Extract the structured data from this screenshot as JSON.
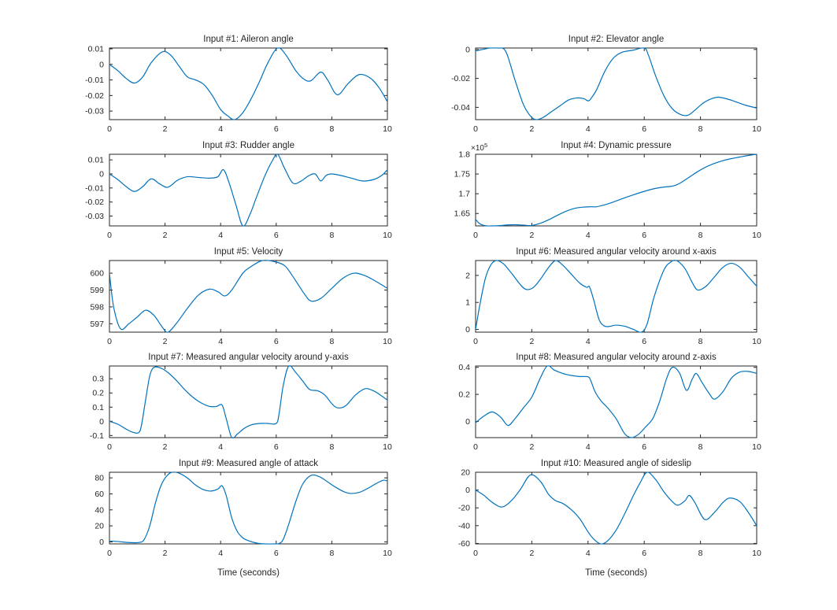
{
  "figure": {
    "background": "#ffffff",
    "line_color": "#0072BD",
    "axis_color": "#262626",
    "text_color": "#262626",
    "grid": false,
    "layout": {
      "rows": 5,
      "cols": 2
    }
  },
  "chart_data": [
    {
      "type": "line",
      "title": "Input #1: Aileron angle",
      "xlabel": "",
      "xlim": [
        0,
        10
      ],
      "ylim": [
        -0.0355,
        0.0105
      ],
      "xticks": [
        0,
        2,
        4,
        6,
        8,
        10
      ],
      "xtick_labels": [
        "0",
        "2",
        "4",
        "6",
        "8",
        "10"
      ],
      "yticks": [
        -0.03,
        -0.02,
        -0.01,
        0,
        0.01
      ],
      "ytick_labels": [
        "-0.03",
        "-0.02",
        "-0.01",
        "0",
        "0.01"
      ],
      "exponent_label": "",
      "x": [
        0,
        0.3,
        0.6,
        0.9,
        1.2,
        1.5,
        1.9,
        2.2,
        2.5,
        2.8,
        3.1,
        3.4,
        3.7,
        4.0,
        4.25,
        4.5,
        4.8,
        5.1,
        5.4,
        5.7,
        6.05,
        6.35,
        6.7,
        7.0,
        7.25,
        7.6,
        7.85,
        8.2,
        8.6,
        9.0,
        9.4,
        9.7,
        10
      ],
      "y": [
        0,
        -0.004,
        -0.009,
        -0.012,
        -0.008,
        0.001,
        0.008,
        0.006,
        -0.001,
        -0.008,
        -0.01,
        -0.013,
        -0.02,
        -0.029,
        -0.033,
        -0.0355,
        -0.031,
        -0.022,
        -0.011,
        0.001,
        0.0105,
        0.006,
        -0.004,
        -0.0095,
        -0.0105,
        -0.005,
        -0.01,
        -0.0195,
        -0.012,
        -0.0065,
        -0.009,
        -0.015,
        -0.024
      ]
    },
    {
      "type": "line",
      "title": "Input #2: Elevator angle",
      "xlabel": "",
      "xlim": [
        0,
        10
      ],
      "ylim": [
        -0.0485,
        0.001
      ],
      "xticks": [
        0,
        2,
        4,
        6,
        8,
        10
      ],
      "xtick_labels": [
        "0",
        "2",
        "4",
        "6",
        "8",
        "10"
      ],
      "yticks": [
        -0.04,
        -0.02,
        0
      ],
      "ytick_labels": [
        "-0.04",
        "-0.02",
        "0"
      ],
      "exponent_label": "",
      "x": [
        0,
        0.25,
        0.5,
        0.8,
        1.0,
        1.15,
        1.4,
        1.7,
        1.95,
        2.15,
        2.4,
        2.7,
        3.0,
        3.3,
        3.6,
        3.85,
        4.0,
        4.1,
        4.3,
        4.6,
        4.9,
        5.2,
        5.6,
        6.0,
        6.15,
        6.4,
        6.7,
        7.0,
        7.3,
        7.55,
        7.8,
        8.1,
        8.4,
        8.65,
        9.0,
        9.3,
        9.6,
        10
      ],
      "y": [
        -0.001,
        0,
        0.001,
        0.001,
        0.0005,
        -0.005,
        -0.021,
        -0.038,
        -0.046,
        -0.0485,
        -0.047,
        -0.043,
        -0.039,
        -0.035,
        -0.0335,
        -0.034,
        -0.0355,
        -0.034,
        -0.028,
        -0.015,
        -0.006,
        -0.002,
        -0.0005,
        0.001,
        -0.004,
        -0.018,
        -0.032,
        -0.041,
        -0.045,
        -0.0455,
        -0.042,
        -0.037,
        -0.034,
        -0.033,
        -0.0345,
        -0.0365,
        -0.0385,
        -0.0405
      ]
    },
    {
      "type": "line",
      "title": "Input #3: Rudder angle",
      "xlabel": "",
      "xlim": [
        0,
        10
      ],
      "ylim": [
        -0.037,
        0.014
      ],
      "xticks": [
        0,
        2,
        4,
        6,
        8,
        10
      ],
      "xtick_labels": [
        "0",
        "2",
        "4",
        "6",
        "8",
        "10"
      ],
      "yticks": [
        -0.03,
        -0.02,
        -0.01,
        0,
        0.01
      ],
      "ytick_labels": [
        "-0.03",
        "-0.02",
        "-0.01",
        "0",
        "0.01"
      ],
      "exponent_label": "",
      "x": [
        0,
        0.3,
        0.6,
        0.9,
        1.2,
        1.5,
        1.8,
        2.1,
        2.45,
        2.8,
        3.2,
        3.6,
        3.9,
        4.1,
        4.3,
        4.55,
        4.8,
        5.05,
        5.3,
        5.6,
        5.85,
        6.05,
        6.3,
        6.6,
        6.9,
        7.15,
        7.4,
        7.6,
        7.8,
        8.0,
        8.3,
        8.7,
        9.1,
        9.5,
        9.8,
        10
      ],
      "y": [
        0,
        -0.004,
        -0.009,
        -0.0125,
        -0.009,
        -0.0035,
        -0.007,
        -0.0095,
        -0.0045,
        -0.002,
        -0.0025,
        -0.003,
        -0.002,
        0.003,
        -0.006,
        -0.022,
        -0.037,
        -0.029,
        -0.016,
        -0.001,
        0.009,
        0.014,
        0.004,
        -0.0065,
        -0.005,
        -0.0015,
        0,
        -0.005,
        -0.001,
        0,
        -0.001,
        -0.003,
        -0.005,
        -0.004,
        -0.001,
        0.003
      ]
    },
    {
      "type": "line",
      "title": "Input #4: Dynamic pressure",
      "xlabel": "",
      "xlim": [
        0,
        10
      ],
      "ylim": [
        1.6185,
        1.8
      ],
      "xticks": [
        0,
        2,
        4,
        6,
        8,
        10
      ],
      "xtick_labels": [
        "0",
        "2",
        "4",
        "6",
        "8",
        "10"
      ],
      "yticks": [
        1.65,
        1.7,
        1.75,
        1.8
      ],
      "ytick_labels": [
        "1.65",
        "1.7",
        "1.75",
        "1.8"
      ],
      "exponent_label": "×10^5",
      "x": [
        0,
        0.15,
        0.35,
        0.6,
        0.9,
        1.15,
        1.4,
        1.7,
        2.0,
        2.3,
        2.6,
        2.9,
        3.2,
        3.5,
        3.8,
        4.1,
        4.3,
        4.6,
        4.9,
        5.2,
        5.6,
        6.0,
        6.3,
        6.6,
        6.8,
        7.05,
        7.3,
        7.6,
        7.9,
        8.2,
        8.5,
        8.8,
        9.1,
        9.4,
        9.7,
        10
      ],
      "y": [
        1.635,
        1.624,
        1.619,
        1.6185,
        1.6195,
        1.621,
        1.6215,
        1.6205,
        1.6195,
        1.625,
        1.634,
        1.645,
        1.655,
        1.6625,
        1.666,
        1.667,
        1.667,
        1.672,
        1.679,
        1.687,
        1.697,
        1.706,
        1.712,
        1.716,
        1.7175,
        1.72,
        1.728,
        1.742,
        1.756,
        1.768,
        1.777,
        1.784,
        1.789,
        1.793,
        1.797,
        1.8
      ]
    },
    {
      "type": "line",
      "title": "Input #5: Velocity",
      "xlabel": "",
      "xlim": [
        0,
        10
      ],
      "ylim": [
        596.5,
        600.75
      ],
      "xticks": [
        0,
        2,
        4,
        6,
        8,
        10
      ],
      "xtick_labels": [
        "0",
        "2",
        "4",
        "6",
        "8",
        "10"
      ],
      "yticks": [
        597,
        598,
        599,
        600
      ],
      "ytick_labels": [
        "597",
        "598",
        "599",
        "600"
      ],
      "exponent_label": "",
      "x": [
        0,
        0.15,
        0.4,
        0.7,
        1.0,
        1.3,
        1.6,
        1.9,
        2.1,
        2.4,
        2.8,
        3.2,
        3.6,
        3.9,
        4.15,
        4.4,
        4.8,
        5.1,
        5.5,
        5.9,
        6.3,
        6.6,
        7.0,
        7.25,
        7.6,
        8.0,
        8.4,
        8.8,
        9.2,
        9.6,
        10
      ],
      "y": [
        600,
        598,
        596.7,
        597,
        597.4,
        597.8,
        597.5,
        596.8,
        596.5,
        597,
        597.9,
        598.7,
        599.05,
        598.9,
        598.65,
        599,
        600,
        600.4,
        600.75,
        600.7,
        600.45,
        599.8,
        598.8,
        598.35,
        598.5,
        599.1,
        599.7,
        600,
        599.85,
        599.5,
        599.1
      ]
    },
    {
      "type": "line",
      "title": "Input #6: Measured angular velocity around x-axis",
      "xlabel": "",
      "xlim": [
        0,
        10
      ],
      "ylim": [
        -0.1,
        2.55
      ],
      "xticks": [
        0,
        2,
        4,
        6,
        8,
        10
      ],
      "xtick_labels": [
        "0",
        "2",
        "4",
        "6",
        "8",
        "10"
      ],
      "yticks": [
        0,
        1,
        2
      ],
      "ytick_labels": [
        "0",
        "1",
        "2"
      ],
      "exponent_label": "",
      "x": [
        0,
        0.15,
        0.35,
        0.55,
        0.75,
        1.0,
        1.3,
        1.6,
        1.8,
        2.05,
        2.3,
        2.6,
        2.85,
        3.1,
        3.4,
        3.7,
        3.95,
        4.05,
        4.2,
        4.4,
        4.6,
        4.8,
        5.0,
        5.3,
        5.6,
        5.9,
        6.1,
        6.35,
        6.7,
        6.95,
        7.15,
        7.45,
        7.7,
        7.9,
        8.2,
        8.5,
        8.8,
        9.1,
        9.4,
        9.7,
        10
      ],
      "y": [
        0,
        0.9,
        1.9,
        2.4,
        2.55,
        2.42,
        2.05,
        1.65,
        1.48,
        1.55,
        1.85,
        2.3,
        2.55,
        2.38,
        2.05,
        1.72,
        1.56,
        1.58,
        1.1,
        0.35,
        0.12,
        0.12,
        0.16,
        0.12,
        0.01,
        -0.1,
        0.2,
        1.2,
        2.2,
        2.5,
        2.55,
        2.25,
        1.75,
        1.46,
        1.6,
        1.95,
        2.3,
        2.45,
        2.3,
        1.95,
        1.6
      ]
    },
    {
      "type": "line",
      "title": "Input #7: Measured angular velocity around y-axis",
      "xlabel": "",
      "xlim": [
        0,
        10
      ],
      "ylim": [
        -0.115,
        0.39
      ],
      "xticks": [
        0,
        2,
        4,
        6,
        8,
        10
      ],
      "xtick_labels": [
        "0",
        "2",
        "4",
        "6",
        "8",
        "10"
      ],
      "yticks": [
        -0.1,
        0,
        0.1,
        0.2,
        0.3
      ],
      "ytick_labels": [
        "-0.1",
        "0",
        "0.1",
        "0.2",
        "0.3"
      ],
      "exponent_label": "",
      "x": [
        0,
        0.3,
        0.6,
        0.85,
        1.05,
        1.15,
        1.3,
        1.45,
        1.6,
        1.85,
        2.1,
        2.4,
        2.7,
        3.0,
        3.3,
        3.6,
        3.85,
        4.05,
        4.2,
        4.4,
        4.6,
        4.85,
        5.1,
        5.4,
        5.7,
        6.0,
        6.1,
        6.25,
        6.45,
        6.7,
        6.95,
        7.2,
        7.5,
        7.75,
        8.0,
        8.2,
        8.5,
        8.85,
        9.2,
        9.5,
        9.75,
        10
      ],
      "y": [
        0,
        -0.02,
        -0.055,
        -0.078,
        -0.08,
        -0.03,
        0.15,
        0.32,
        0.38,
        0.375,
        0.345,
        0.29,
        0.225,
        0.17,
        0.13,
        0.105,
        0.105,
        0.115,
        0.02,
        -0.115,
        -0.09,
        -0.05,
        -0.025,
        -0.015,
        -0.015,
        -0.015,
        0.05,
        0.25,
        0.39,
        0.345,
        0.285,
        0.225,
        0.215,
        0.185,
        0.125,
        0.095,
        0.11,
        0.185,
        0.23,
        0.215,
        0.185,
        0.15
      ]
    },
    {
      "type": "line",
      "title": "Input #8: Measured angular velocity around z-axis",
      "xlabel": "",
      "xlim": [
        0,
        10
      ],
      "ylim": [
        -0.12,
        0.41
      ],
      "xticks": [
        0,
        2,
        4,
        6,
        8,
        10
      ],
      "xtick_labels": [
        "0",
        "2",
        "4",
        "6",
        "8",
        "10"
      ],
      "yticks": [
        0,
        0.2,
        0.4
      ],
      "ytick_labels": [
        "0",
        "0.2",
        "0.4"
      ],
      "exponent_label": "",
      "x": [
        0,
        0.3,
        0.6,
        0.9,
        1.15,
        1.4,
        1.7,
        2.0,
        2.3,
        2.55,
        2.8,
        3.1,
        3.4,
        3.7,
        4.0,
        4.1,
        4.25,
        4.45,
        4.7,
        5.0,
        5.3,
        5.55,
        5.8,
        6.05,
        6.3,
        6.55,
        6.8,
        7.0,
        7.25,
        7.5,
        7.7,
        7.85,
        8.05,
        8.3,
        8.5,
        8.8,
        9.1,
        9.4,
        9.7,
        10
      ],
      "y": [
        -0.01,
        0.04,
        0.07,
        0.03,
        -0.03,
        0.02,
        0.1,
        0.18,
        0.32,
        0.41,
        0.38,
        0.355,
        0.34,
        0.332,
        0.33,
        0.3,
        0.22,
        0.155,
        0.1,
        0.02,
        -0.09,
        -0.12,
        -0.095,
        -0.04,
        0.02,
        0.15,
        0.32,
        0.4,
        0.36,
        0.23,
        0.31,
        0.355,
        0.29,
        0.21,
        0.165,
        0.22,
        0.32,
        0.365,
        0.37,
        0.355
      ]
    },
    {
      "type": "line",
      "title": "Input #9: Measured angle of attack",
      "xlabel": "Time (seconds)",
      "xlim": [
        0,
        10
      ],
      "ylim": [
        -2.5,
        87
      ],
      "xticks": [
        0,
        2,
        4,
        6,
        8,
        10
      ],
      "xtick_labels": [
        "0",
        "2",
        "4",
        "6",
        "8",
        "10"
      ],
      "yticks": [
        0,
        20,
        40,
        60,
        80
      ],
      "ytick_labels": [
        "0",
        "20",
        "40",
        "60",
        "80"
      ],
      "exponent_label": "",
      "x": [
        0,
        0.3,
        0.6,
        0.9,
        1.1,
        1.25,
        1.45,
        1.65,
        1.85,
        2.05,
        2.25,
        2.5,
        2.8,
        3.1,
        3.4,
        3.65,
        3.9,
        4.05,
        4.2,
        4.4,
        4.6,
        4.8,
        5.0,
        5.3,
        5.6,
        5.9,
        6.1,
        6.25,
        6.45,
        6.7,
        6.95,
        7.25,
        7.55,
        7.85,
        8.15,
        8.45,
        8.7,
        9.0,
        9.3,
        9.6,
        9.85,
        10
      ],
      "y": [
        1,
        0.5,
        -0.5,
        -1,
        -0.5,
        3,
        20,
        48,
        70,
        82,
        87,
        86,
        80,
        71,
        65,
        63.5,
        66,
        70,
        58,
        30,
        13,
        5,
        1.5,
        -1.5,
        -2.5,
        -2.5,
        -2,
        3,
        22,
        50,
        72,
        83,
        81.5,
        75,
        68,
        62.5,
        60.5,
        62,
        67,
        73,
        77,
        76
      ]
    },
    {
      "type": "line",
      "title": "Input #10: Measured angle of sideslip",
      "xlabel": "Time (seconds)",
      "xlim": [
        0,
        10
      ],
      "ylim": [
        -60.5,
        20
      ],
      "xticks": [
        0,
        2,
        4,
        6,
        8,
        10
      ],
      "xtick_labels": [
        "0",
        "2",
        "4",
        "6",
        "8",
        "10"
      ],
      "yticks": [
        -60,
        -40,
        -20,
        0,
        20
      ],
      "ytick_labels": [
        "-60",
        "-40",
        "-20",
        "0",
        "20"
      ],
      "exponent_label": "",
      "x": [
        0,
        0.3,
        0.6,
        0.95,
        1.3,
        1.6,
        1.95,
        2.3,
        2.6,
        2.85,
        3.1,
        3.4,
        3.7,
        4.0,
        4.2,
        4.45,
        4.7,
        5.0,
        5.3,
        5.6,
        5.85,
        6.1,
        6.4,
        6.7,
        7.0,
        7.2,
        7.45,
        7.6,
        7.8,
        8.15,
        8.5,
        8.8,
        9.05,
        9.4,
        9.7,
        10
      ],
      "y": [
        0,
        -6,
        -14,
        -19,
        -11,
        1,
        17,
        10,
        -5,
        -12,
        -15,
        -22,
        -32,
        -47,
        -55,
        -60.5,
        -57,
        -45,
        -27,
        -7,
        8,
        20,
        12,
        -2,
        -13,
        -17,
        -12,
        -6,
        -14,
        -33,
        -25,
        -14,
        -9,
        -13,
        -25,
        -40
      ]
    }
  ]
}
